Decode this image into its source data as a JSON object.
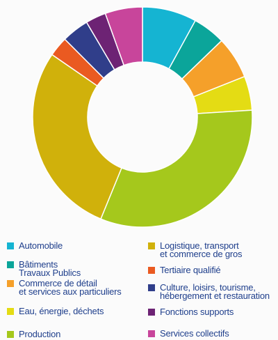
{
  "chart_data": {
    "type": "pie",
    "subtype": "donut",
    "title": "",
    "categories": [
      "Automobile",
      "Bâtiments\nTravaux Publics",
      "Commerce de détail\net services aux particuliers",
      "Eau, énergie, déchets",
      "Production",
      "Logistique, transport\net commerce de gros",
      "Tertiaire qualifié",
      "Culture, loisirs, tourisme,\nhébergement et restauration",
      "Fonctions supports",
      "Services collectifs"
    ],
    "values": [
      8.0,
      4.8,
      6.2,
      5.0,
      32.2,
      28.4,
      2.9,
      4.0,
      3.0,
      5.5
    ],
    "colors": [
      "#15b4d2",
      "#0ba59a",
      "#f5a02a",
      "#e4dc14",
      "#a5c81c",
      "#d0b10b",
      "#ea5a21",
      "#303e8a",
      "#6d2374",
      "#c8459b"
    ],
    "legend_position": "bottom"
  }
}
